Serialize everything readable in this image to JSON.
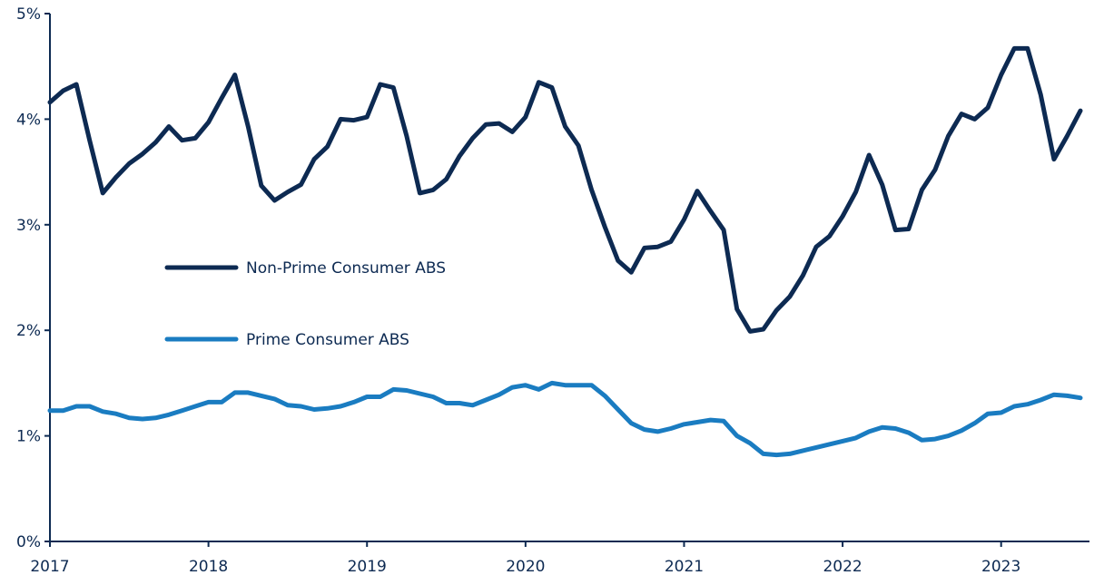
{
  "chart_data": {
    "type": "line",
    "title": "",
    "xlabel": "",
    "ylabel": "",
    "x_start": "2017-01",
    "x_frequency": "monthly",
    "xlim": [
      "2017-01",
      "2023-07"
    ],
    "ylim": [
      0,
      5
    ],
    "x_ticks": [
      "2017",
      "2018",
      "2019",
      "2020",
      "2021",
      "2022",
      "2023"
    ],
    "y_ticks": [
      "0%",
      "1%",
      "2%",
      "3%",
      "4%",
      "5%"
    ],
    "grid": false,
    "legend_placement": "center-left",
    "series": [
      {
        "name": "Non-Prime Consumer ABS",
        "color": "#0d2a52",
        "values": [
          4.16,
          4.27,
          4.33,
          3.8,
          3.3,
          3.45,
          3.58,
          3.67,
          3.78,
          3.93,
          3.8,
          3.82,
          3.97,
          4.2,
          4.42,
          3.93,
          3.37,
          3.23,
          3.31,
          3.38,
          3.62,
          3.74,
          4.0,
          3.99,
          4.02,
          4.33,
          4.3,
          3.84,
          3.3,
          3.33,
          3.43,
          3.65,
          3.82,
          3.95,
          3.96,
          3.88,
          4.02,
          4.35,
          4.3,
          3.93,
          3.75,
          3.33,
          2.98,
          2.66,
          2.55,
          2.78,
          2.79,
          2.84,
          3.05,
          3.32,
          3.13,
          2.95,
          2.2,
          1.99,
          2.01,
          2.19,
          2.32,
          2.52,
          2.79,
          2.89,
          3.08,
          3.31,
          3.66,
          3.38,
          2.95,
          2.96,
          3.33,
          3.52,
          3.84,
          4.05,
          4.0,
          4.11,
          4.42,
          4.67,
          4.67,
          4.23,
          3.62,
          3.84,
          4.08
        ]
      },
      {
        "name": "Prime Consumer ABS",
        "color": "#1a7cc1",
        "values": [
          1.24,
          1.24,
          1.28,
          1.28,
          1.23,
          1.21,
          1.17,
          1.16,
          1.17,
          1.2,
          1.24,
          1.28,
          1.32,
          1.32,
          1.41,
          1.41,
          1.38,
          1.35,
          1.29,
          1.28,
          1.25,
          1.26,
          1.28,
          1.32,
          1.37,
          1.37,
          1.44,
          1.43,
          1.4,
          1.37,
          1.31,
          1.31,
          1.29,
          1.34,
          1.39,
          1.46,
          1.48,
          1.44,
          1.5,
          1.48,
          1.48,
          1.48,
          1.38,
          1.25,
          1.12,
          1.06,
          1.04,
          1.07,
          1.11,
          1.13,
          1.15,
          1.14,
          1.0,
          0.93,
          0.83,
          0.82,
          0.83,
          0.86,
          0.89,
          0.92,
          0.95,
          0.98,
          1.04,
          1.08,
          1.07,
          1.03,
          0.96,
          0.97,
          1.0,
          1.05,
          1.12,
          1.21,
          1.22,
          1.28,
          1.3,
          1.34,
          1.39,
          1.38,
          1.36
        ]
      }
    ]
  }
}
